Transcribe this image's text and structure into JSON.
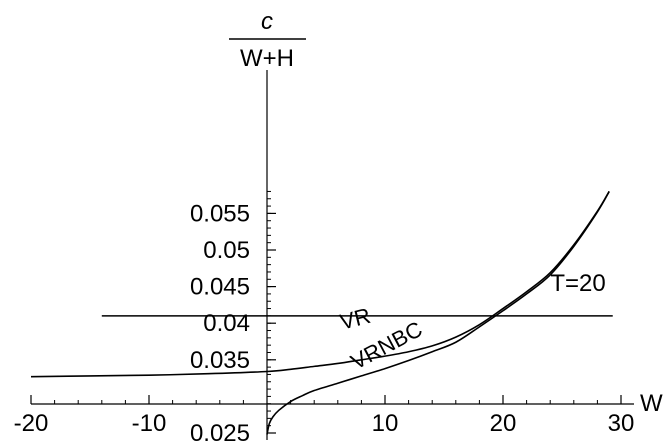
{
  "chart_data": {
    "type": "line",
    "ylabel": {
      "numerator": "c",
      "denominator": "W+H"
    },
    "xlabel": "W",
    "xlim": [
      -20,
      30
    ],
    "ylim": [
      0.0245,
      0.058
    ],
    "x_ticks": [
      -20,
      -10,
      10,
      20,
      30
    ],
    "x_tick_labels": [
      "-20",
      "-10",
      "10",
      "20",
      "30"
    ],
    "y_ticks": [
      0.025,
      0.035,
      0.04,
      0.045,
      0.05,
      0.055
    ],
    "y_tick_labels": [
      "0.025",
      "0.035",
      "0.04",
      "0.045",
      "0.05",
      "0.055"
    ],
    "grid": false,
    "series": [
      {
        "name": "VR",
        "x": [
          -20,
          -15,
          -10,
          -5,
          0,
          2,
          4,
          6,
          8,
          10,
          12,
          14,
          16,
          18,
          20,
          22,
          24,
          26,
          28,
          29
        ],
        "y": [
          0.0327,
          0.0328,
          0.0329,
          0.0331,
          0.0334,
          0.0337,
          0.0341,
          0.0345,
          0.035,
          0.0355,
          0.0361,
          0.0369,
          0.0381,
          0.0398,
          0.042,
          0.0443,
          0.0469,
          0.0507,
          0.0553,
          0.058
        ]
      },
      {
        "name": "VRNBC",
        "x": [
          0,
          0.2,
          0.5,
          1,
          2,
          3,
          4,
          6,
          8,
          10,
          12,
          14,
          16,
          18,
          20,
          22,
          24,
          26,
          28,
          29
        ],
        "y": [
          0.0248,
          0.0263,
          0.0272,
          0.0281,
          0.0293,
          0.0301,
          0.0308,
          0.0318,
          0.0328,
          0.0338,
          0.0349,
          0.0361,
          0.0374,
          0.0395,
          0.0417,
          0.044,
          0.0466,
          0.0505,
          0.0552,
          0.058
        ]
      }
    ],
    "hline": {
      "y": 0.041,
      "x_from": -14,
      "x_to": 29.3,
      "label": "T=20"
    },
    "curve_labels": {
      "vr": "VR",
      "vrnbc": "VRNBC"
    }
  }
}
